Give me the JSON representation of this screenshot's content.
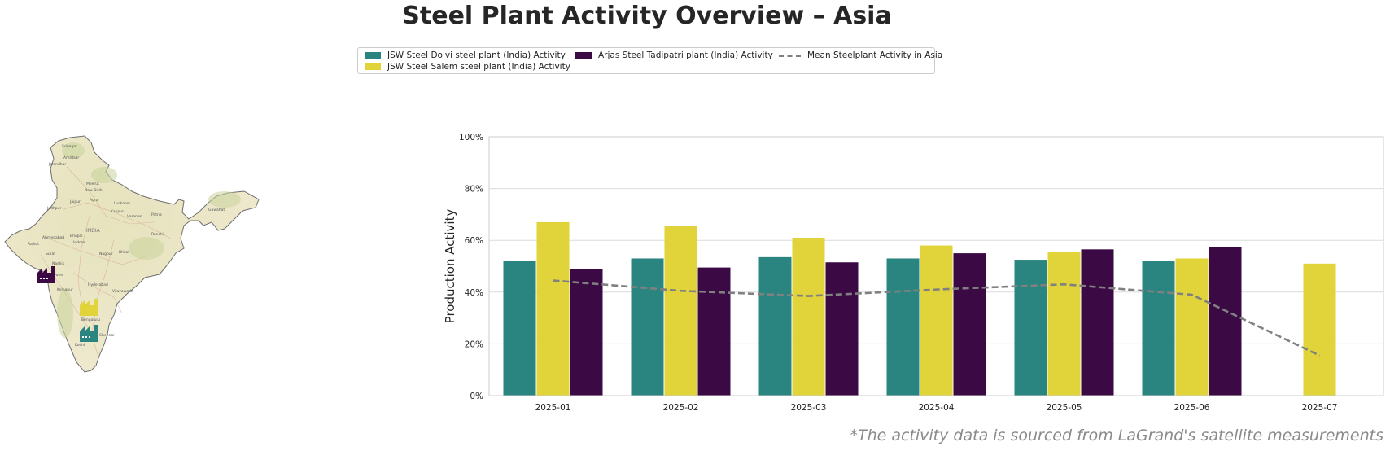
{
  "title": "Steel Plant Activity Overview – Asia",
  "legend": {
    "items": [
      {
        "label": "JSW Steel Dolvi steel plant (India) Activity",
        "color": "#2a8580",
        "kind": "bar"
      },
      {
        "label": "JSW Steel Salem steel plant (India) Activity",
        "color": "#e1d33a",
        "kind": "bar"
      },
      {
        "label": "Arjas Steel Tadipatri plant (India) Activity",
        "color": "#3b0a45",
        "kind": "bar"
      },
      {
        "label": "Mean Steelplant Activity in Asia",
        "color": "#808080",
        "kind": "dashed-line"
      }
    ]
  },
  "map": {
    "labels": [
      "Srinagar",
      "Jalandhar",
      "Amritsar",
      "Meerut",
      "New Delhi",
      "Jaipur",
      "Agra",
      "Lucknow",
      "Kanpur",
      "Jodhpur",
      "Varanasi",
      "Patna",
      "Guwahati",
      "INDIA",
      "Ahmedabad",
      "Bhopal",
      "Ranchi",
      "Rajkot",
      "Indore",
      "Surat",
      "Nagpur",
      "Bhilai",
      "Nashik",
      "Pune",
      "Hyderabad",
      "Kolhapur",
      "Vijayawada",
      "Bengaluru",
      "Chennai",
      "Kochi"
    ]
  },
  "chart_data": {
    "type": "bar",
    "categories": [
      "2025-01",
      "2025-02",
      "2025-03",
      "2025-04",
      "2025-05",
      "2025-06",
      "2025-07"
    ],
    "series": [
      {
        "name": "JSW Steel Dolvi steel plant (India) Activity",
        "color": "#2a8580",
        "values": [
          52,
          53,
          53.5,
          53,
          52.5,
          52,
          null
        ]
      },
      {
        "name": "JSW Steel Salem steel plant (India) Activity",
        "color": "#e1d33a",
        "values": [
          67,
          65.5,
          61,
          58,
          55.5,
          53,
          51
        ]
      },
      {
        "name": "Arjas Steel Tadipatri plant (India) Activity",
        "color": "#3b0a45",
        "values": [
          49,
          49.5,
          51.5,
          55,
          56.5,
          57.5,
          null
        ]
      },
      {
        "name": "Mean Steelplant Activity in Asia",
        "color": "#808080",
        "kind": "dashed-line",
        "values": [
          44.5,
          40.5,
          38.5,
          41,
          43,
          39,
          15.5
        ]
      }
    ],
    "ylabel": "Production Activity",
    "xlabel": "",
    "ylim": [
      0,
      100
    ],
    "yticks": [
      "0%",
      "20%",
      "40%",
      "60%",
      "80%",
      "100%"
    ],
    "grid": true
  },
  "footnote": "*The activity data is sourced from LaGrand's satellite measurements"
}
